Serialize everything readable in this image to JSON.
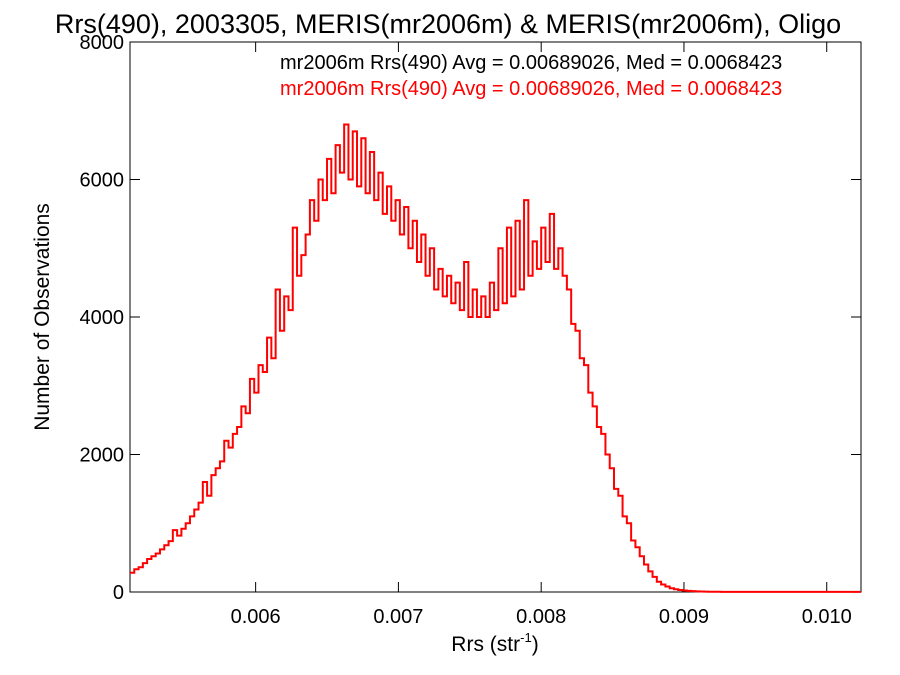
{
  "chart_data": {
    "type": "histogram",
    "title": "Rrs(490), 2003305, MERIS(mr2006m) & MERIS(mr2006m), Oligo",
    "xlabel": "Rrs (str",
    "xlabel_superscript": "-1",
    "xlabel_suffix": ")",
    "ylabel": "Number of Observations",
    "xlim": [
      0.00512,
      0.01024
    ],
    "ylim": [
      0,
      8000
    ],
    "x_ticks": [
      0.006,
      0.007,
      0.008,
      0.009,
      0.01
    ],
    "x_tick_labels": [
      "0.006",
      "0.007",
      "0.008",
      "0.009",
      "0.010"
    ],
    "y_ticks": [
      0,
      2000,
      4000,
      6000,
      8000
    ],
    "y_tick_labels": [
      "0",
      "2000",
      "4000",
      "6000",
      "8000"
    ],
    "bin_width": 3e-05,
    "legend": [
      {
        "text": "mr2006m Rrs(490) Avg = 0.00689026, Med = 0.0068423",
        "color": "#000000"
      },
      {
        "text": "mr2006m Rrs(490) Avg = 0.00689026, Med = 0.0068423",
        "color": "#ff0000"
      }
    ],
    "series": [
      {
        "name": "mr2006m Rrs(490)",
        "color": "#ff0000",
        "x": [
          0.00512,
          0.00515,
          0.00518,
          0.00521,
          0.00524,
          0.00527,
          0.0053,
          0.00533,
          0.00536,
          0.00539,
          0.00542,
          0.00545,
          0.00548,
          0.00551,
          0.00554,
          0.00557,
          0.0056,
          0.00563,
          0.00566,
          0.00569,
          0.00572,
          0.00575,
          0.00578,
          0.00581,
          0.00584,
          0.00587,
          0.0059,
          0.00593,
          0.00596,
          0.00599,
          0.00602,
          0.00605,
          0.00608,
          0.00611,
          0.00614,
          0.00617,
          0.0062,
          0.00623,
          0.00626,
          0.00629,
          0.00632,
          0.00635,
          0.00638,
          0.00641,
          0.00644,
          0.00647,
          0.0065,
          0.00653,
          0.00656,
          0.00659,
          0.00662,
          0.00665,
          0.00668,
          0.00671,
          0.00674,
          0.00677,
          0.0068,
          0.00683,
          0.00686,
          0.00689,
          0.00692,
          0.00695,
          0.00698,
          0.00701,
          0.00704,
          0.00707,
          0.0071,
          0.00713,
          0.00716,
          0.00719,
          0.00722,
          0.00725,
          0.00728,
          0.00731,
          0.00734,
          0.00737,
          0.0074,
          0.00743,
          0.00746,
          0.00749,
          0.00752,
          0.00755,
          0.00758,
          0.00761,
          0.00764,
          0.00767,
          0.0077,
          0.00773,
          0.00776,
          0.00779,
          0.00782,
          0.00785,
          0.00788,
          0.00791,
          0.00794,
          0.00797,
          0.008,
          0.00803,
          0.00806,
          0.00809,
          0.00812,
          0.00815,
          0.00818,
          0.00821,
          0.00824,
          0.00827,
          0.0083,
          0.00833,
          0.00836,
          0.00839,
          0.00842,
          0.00845,
          0.00848,
          0.00851,
          0.00854,
          0.00857,
          0.0086,
          0.00863,
          0.00866,
          0.00869,
          0.00872,
          0.00875,
          0.00878,
          0.00881,
          0.00884,
          0.00887,
          0.0089,
          0.00893,
          0.00896,
          0.00899,
          0.00902,
          0.00905,
          0.00908,
          0.00911,
          0.00914,
          0.00917,
          0.0092,
          0.00923,
          0.00926,
          0.00929,
          0.00932,
          0.00935,
          0.00938,
          0.00941,
          0.00944,
          0.00947,
          0.0095,
          0.00953,
          0.00956,
          0.00959,
          0.00962,
          0.00965,
          0.00968,
          0.00971,
          0.00974,
          0.00977,
          0.0098,
          0.00983,
          0.00986,
          0.00989,
          0.00992,
          0.00995,
          0.00998,
          0.01001,
          0.01004,
          0.01007,
          0.0101,
          0.01013,
          0.01016,
          0.01019,
          0.01022
        ],
        "values": [
          280,
          330,
          360,
          420,
          480,
          520,
          560,
          620,
          680,
          740,
          900,
          820,
          920,
          1000,
          1100,
          1200,
          1300,
          1600,
          1400,
          1700,
          1800,
          1900,
          2200,
          2100,
          2300,
          2400,
          2700,
          2600,
          3100,
          2900,
          3300,
          3200,
          3700,
          3400,
          4400,
          3800,
          4300,
          4100,
          5300,
          4600,
          4900,
          5200,
          5700,
          5400,
          6000,
          5700,
          6300,
          5800,
          6500,
          6100,
          6800,
          6000,
          6700,
          5900,
          6600,
          5800,
          6400,
          5700,
          6100,
          5500,
          5900,
          5400,
          5700,
          5200,
          5600,
          5000,
          5400,
          4800,
          5200,
          4600,
          5000,
          4400,
          4700,
          4300,
          4600,
          4200,
          4500,
          4100,
          4800,
          4000,
          4400,
          4000,
          4300,
          4000,
          4500,
          4100,
          5000,
          4200,
          5300,
          4300,
          5400,
          4400,
          5700,
          4600,
          5100,
          4700,
          5300,
          4800,
          5500,
          4700,
          5000,
          4600,
          4400,
          3900,
          3800,
          3400,
          3300,
          2900,
          2700,
          2400,
          2300,
          2000,
          1800,
          1500,
          1400,
          1100,
          1000,
          750,
          650,
          520,
          400,
          300,
          220,
          150,
          110,
          80,
          55,
          40,
          30,
          22,
          16,
          12,
          9,
          7,
          5,
          4,
          3,
          3,
          2,
          2,
          2,
          1,
          1,
          1,
          1,
          1,
          1,
          1,
          1,
          1,
          1,
          1,
          1,
          1,
          1,
          1,
          1,
          1,
          1,
          1,
          1,
          1,
          1,
          1,
          1,
          1,
          1,
          1,
          1,
          1,
          1
        ]
      }
    ]
  }
}
